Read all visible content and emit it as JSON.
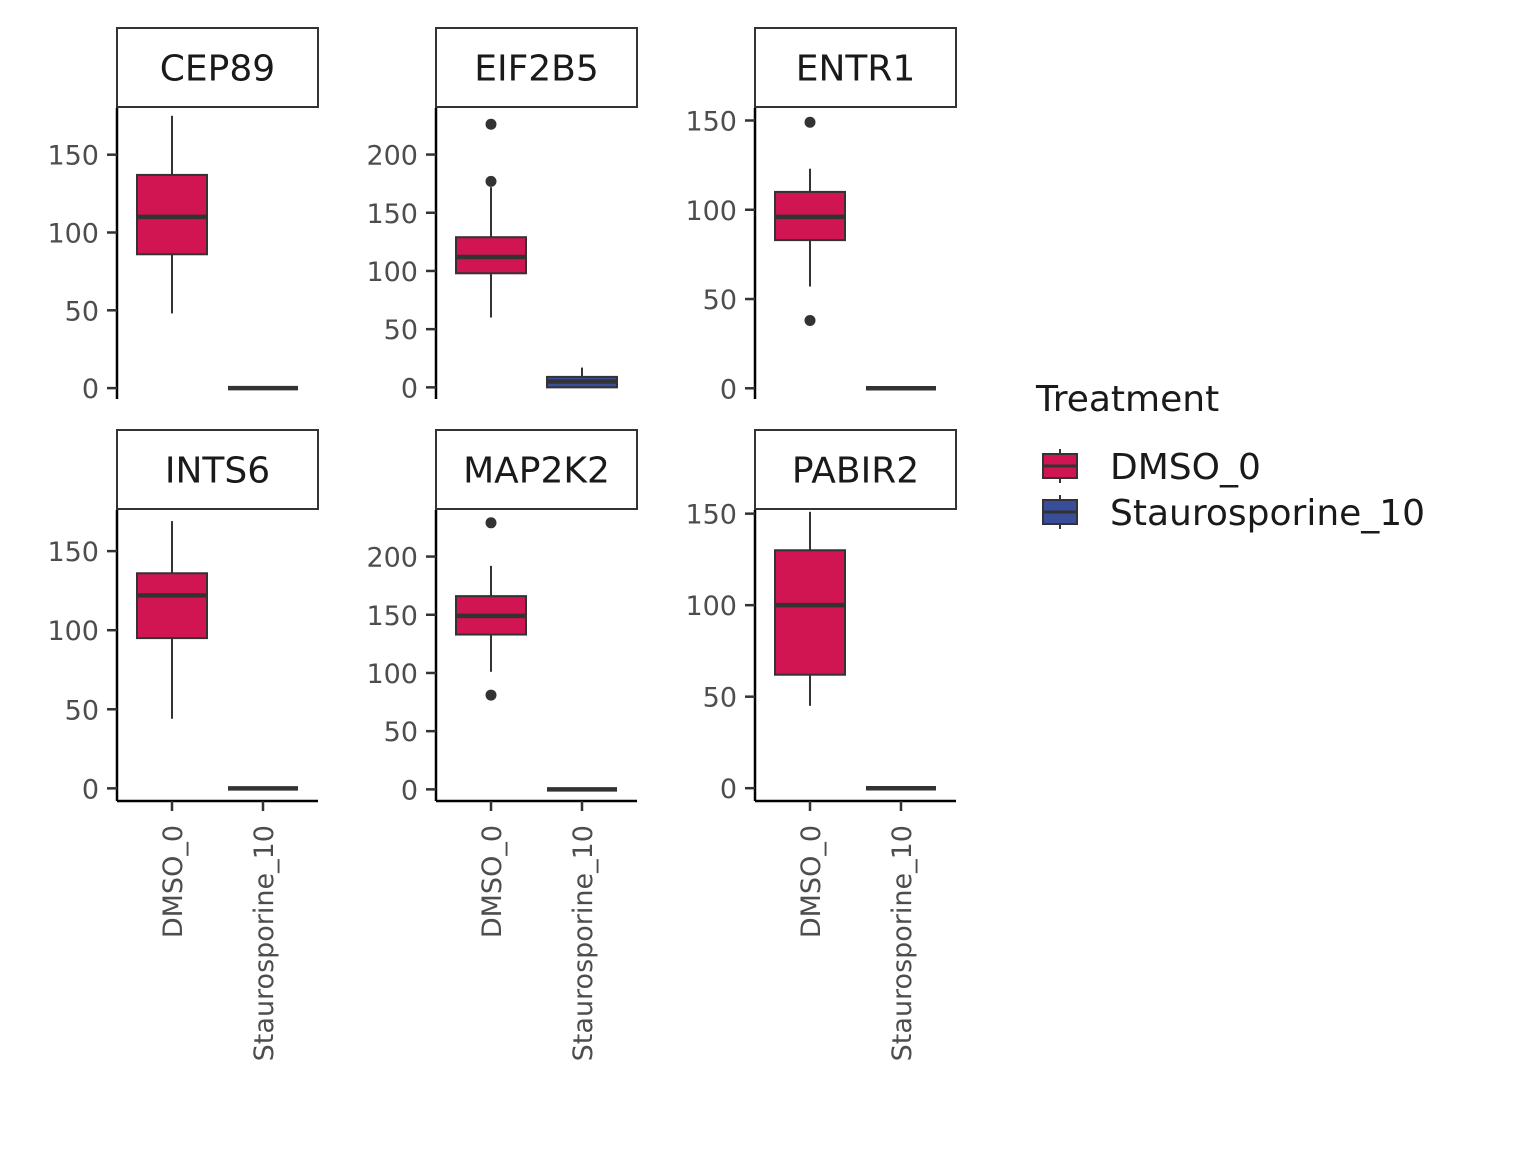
{
  "chart_data": {
    "type": "boxplot",
    "categories": [
      "DMSO_0",
      "Staurosporine_10"
    ],
    "legend": {
      "title": "Treatment",
      "placement": "right",
      "items": [
        {
          "label": "DMSO_0",
          "color": "#D01552"
        },
        {
          "label": "Staurosporine_10",
          "color": "#3A4D9A"
        }
      ]
    },
    "grid": false,
    "panels": [
      {
        "gene": "CEP89",
        "ylim": [
          -7,
          180
        ],
        "yticks": [
          "0",
          "50",
          "100",
          "150"
        ],
        "boxes": [
          {
            "category": "DMSO_0",
            "min": 48,
            "q1": 86,
            "median": 110,
            "q3": 137,
            "max": 175,
            "outliers": []
          },
          {
            "category": "Staurosporine_10",
            "min": 0,
            "q1": 0,
            "median": 0,
            "q3": 0,
            "max": 0,
            "outliers": []
          }
        ]
      },
      {
        "gene": "EIF2B5",
        "ylim": [
          -10,
          240
        ],
        "yticks": [
          "0",
          "50",
          "100",
          "150",
          "200"
        ],
        "boxes": [
          {
            "category": "DMSO_0",
            "min": 60,
            "q1": 98,
            "median": 112,
            "q3": 129,
            "max": 172,
            "outliers": [
              177,
              226
            ]
          },
          {
            "category": "Staurosporine_10",
            "min": 0,
            "q1": 0,
            "median": 5,
            "q3": 9,
            "max": 17,
            "outliers": []
          }
        ]
      },
      {
        "gene": "ENTR1",
        "ylim": [
          -6,
          157
        ],
        "yticks": [
          "0",
          "50",
          "100",
          "150"
        ],
        "boxes": [
          {
            "category": "DMSO_0",
            "min": 57,
            "q1": 83,
            "median": 96,
            "q3": 110,
            "max": 123,
            "outliers": [
              38,
              149
            ]
          },
          {
            "category": "Staurosporine_10",
            "min": 0,
            "q1": 0,
            "median": 0,
            "q3": 0,
            "max": 0,
            "outliers": []
          }
        ]
      },
      {
        "gene": "INTS6",
        "ylim": [
          -8,
          176
        ],
        "yticks": [
          "0",
          "50",
          "100",
          "150"
        ],
        "boxes": [
          {
            "category": "DMSO_0",
            "min": 44,
            "q1": 95,
            "median": 122,
            "q3": 136,
            "max": 169,
            "outliers": []
          },
          {
            "category": "Staurosporine_10",
            "min": 0,
            "q1": 0,
            "median": 0,
            "q3": 0,
            "max": 0,
            "outliers": []
          }
        ]
      },
      {
        "gene": "MAP2K2",
        "ylim": [
          -10,
          240
        ],
        "yticks": [
          "0",
          "50",
          "100",
          "150",
          "200"
        ],
        "boxes": [
          {
            "category": "DMSO_0",
            "min": 101,
            "q1": 133,
            "median": 149,
            "q3": 166,
            "max": 192,
            "outliers": [
              81,
              229
            ]
          },
          {
            "category": "Staurosporine_10",
            "min": 0,
            "q1": 0,
            "median": 0,
            "q3": 0,
            "max": 0,
            "outliers": []
          }
        ]
      },
      {
        "gene": "PABIR2",
        "ylim": [
          -7,
          152
        ],
        "yticks": [
          "0",
          "50",
          "100",
          "150"
        ],
        "boxes": [
          {
            "category": "DMSO_0",
            "min": 45,
            "q1": 62,
            "median": 100,
            "q3": 130,
            "max": 151,
            "outliers": []
          },
          {
            "category": "Staurosporine_10",
            "min": 0,
            "q1": 0,
            "median": 0,
            "q3": 0,
            "max": 0,
            "outliers": []
          }
        ]
      }
    ]
  }
}
